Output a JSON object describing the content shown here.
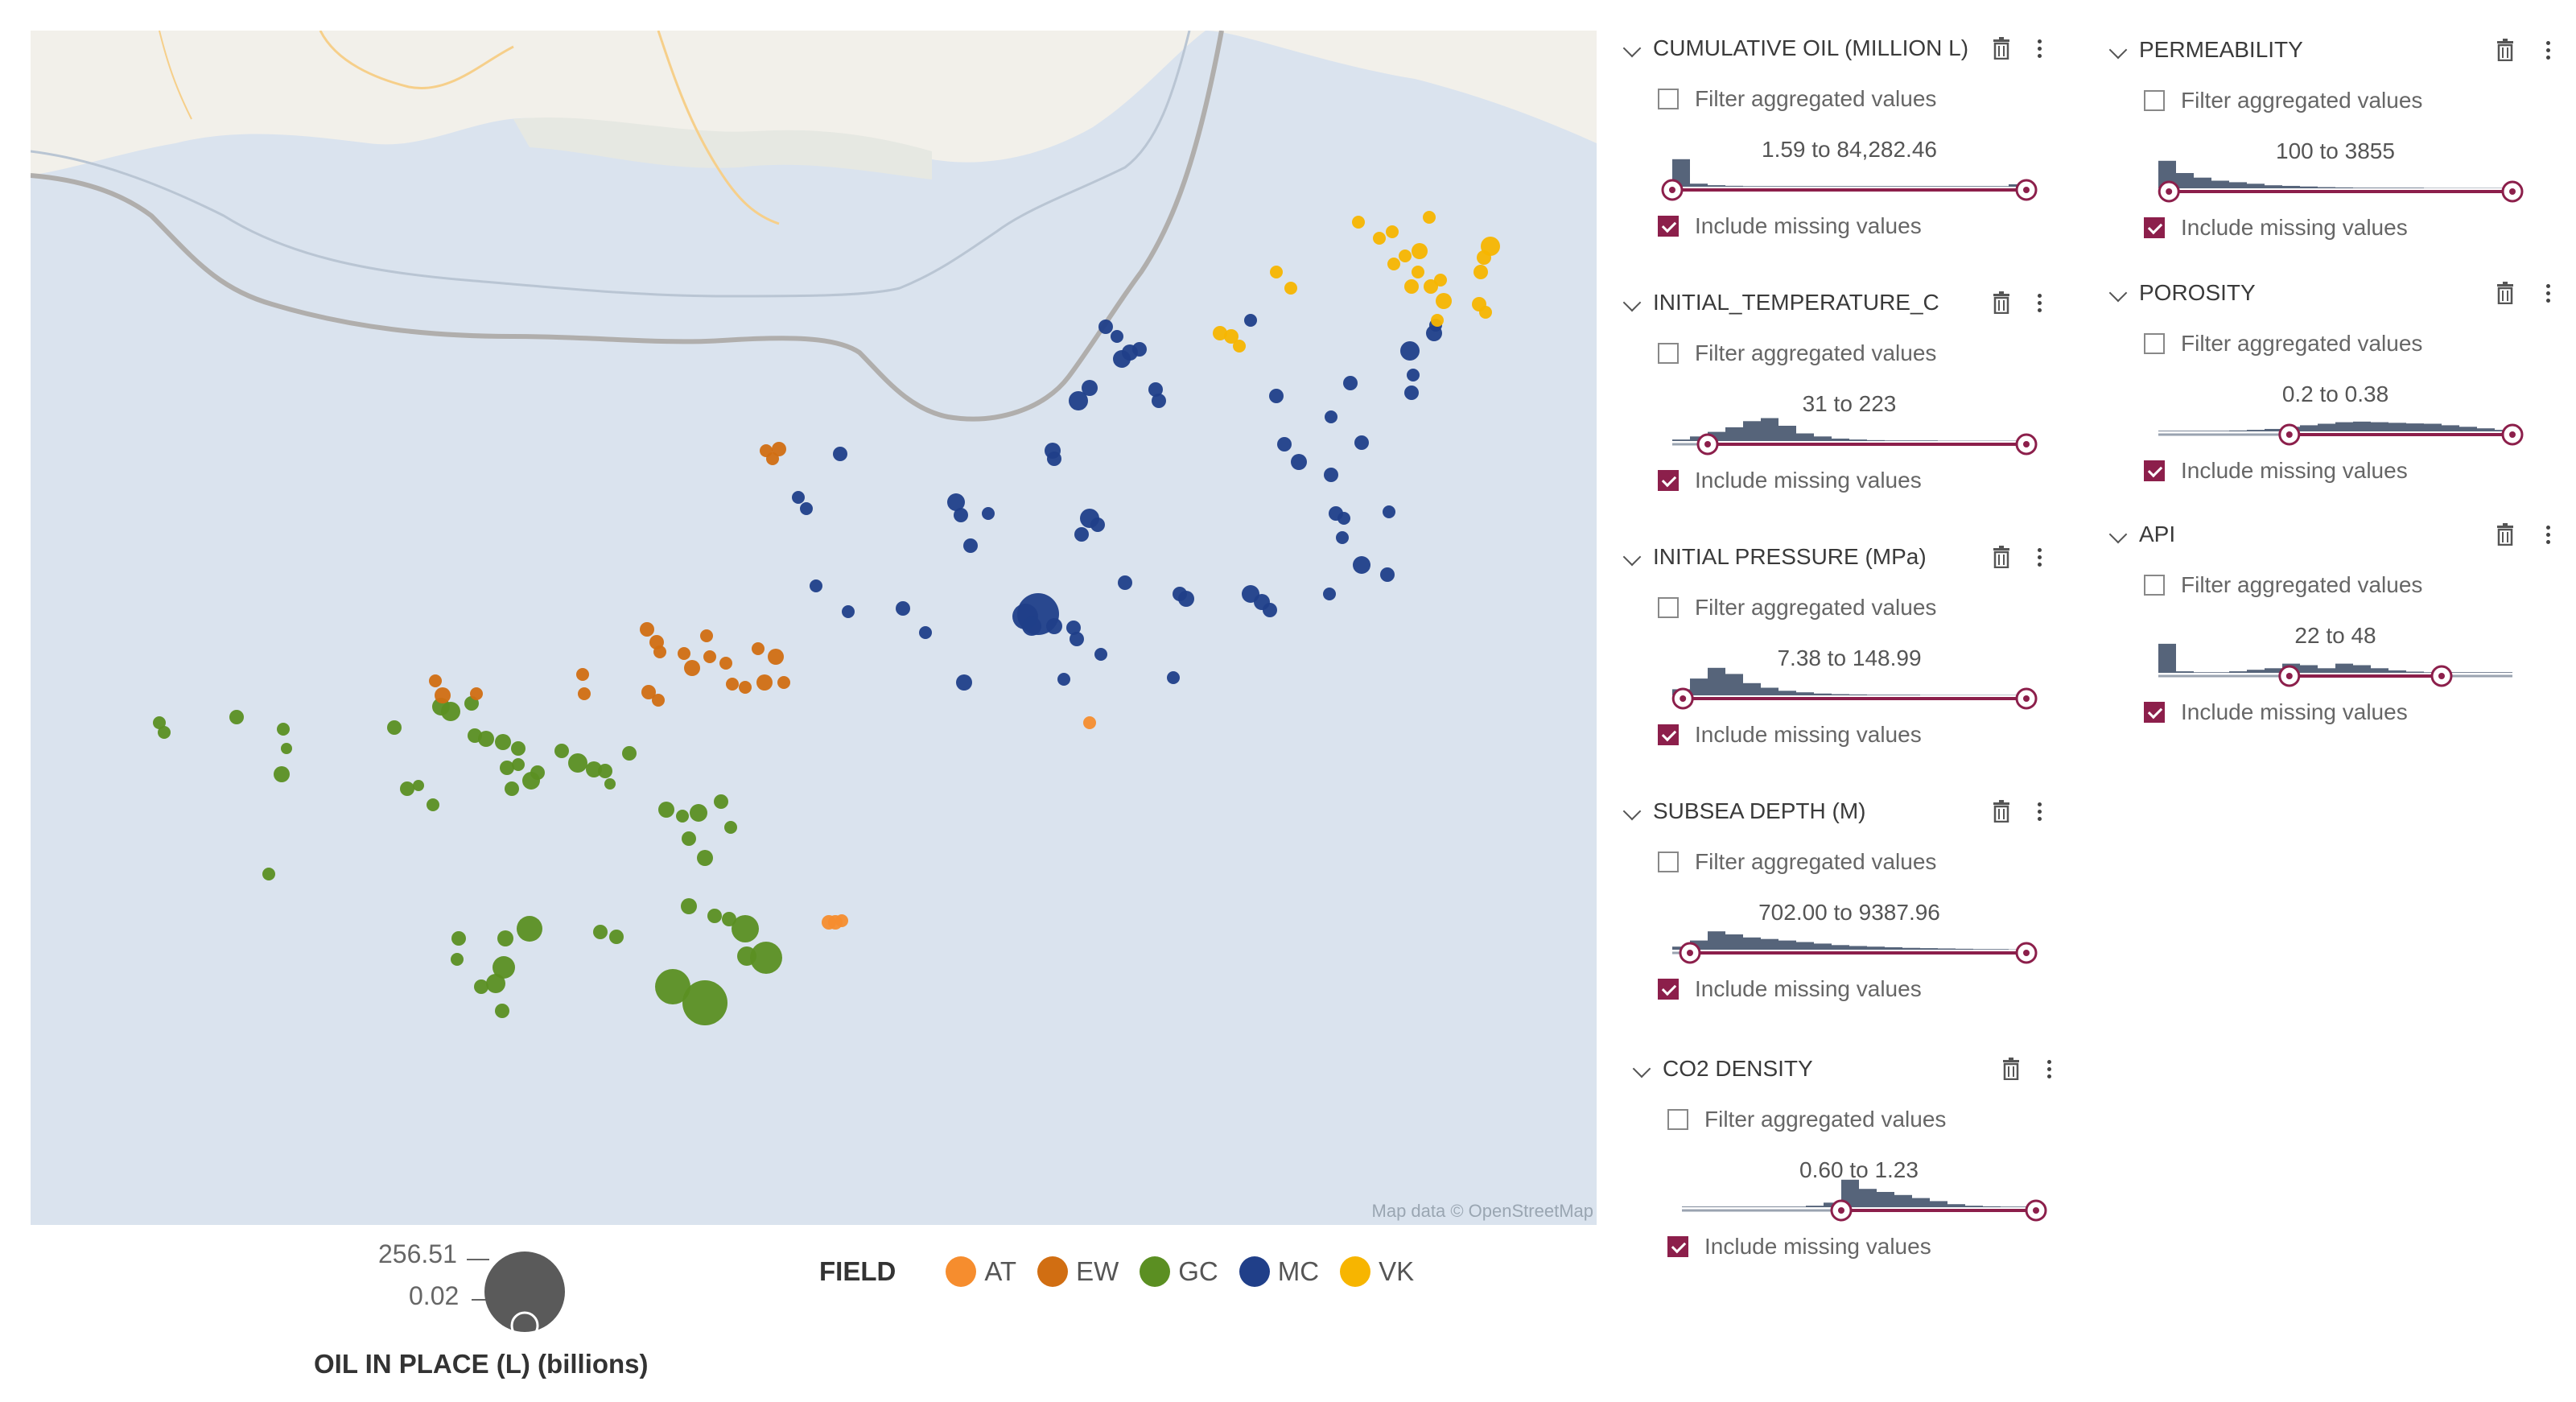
{
  "map": {
    "attribution": "Map data © OpenStreetMap",
    "colors": {
      "water": "#dae3ee",
      "land": "#f2f0ea",
      "shelf_line": "#b3b0ae",
      "AT": "#f68d2e",
      "EW": "#d16e12",
      "GC": "#5b8f22",
      "MC": "#203f89",
      "VK": "#f7b500"
    },
    "note_icons": []
  },
  "size_legend": {
    "max_value": "256.51",
    "min_value": "0.02",
    "title": "OIL IN PLACE (L) (billions)"
  },
  "field_legend": {
    "title": "FIELD",
    "items": [
      {
        "label": "AT",
        "color": "#f68d2e"
      },
      {
        "label": "EW",
        "color": "#d16e12"
      },
      {
        "label": "GC",
        "color": "#5b8f22"
      },
      {
        "label": "MC",
        "color": "#203f89"
      },
      {
        "label": "VK",
        "color": "#f7b500"
      }
    ]
  },
  "filters": [
    {
      "title": "CUMULATIVE OIL (MILLION L)",
      "filter_label": "Filter aggregated values",
      "filter_checked": false,
      "range": "1.59 to 84,282.46",
      "missing_label": "Include missing values",
      "missing_checked": true,
      "low": 0.0,
      "high": 1.0
    },
    {
      "title": "INITIAL_TEMPERATURE_C",
      "filter_label": "Filter aggregated values",
      "filter_checked": false,
      "range": "31 to 223",
      "missing_label": "Include missing values",
      "missing_checked": true,
      "low": 0.1,
      "high": 1.0
    },
    {
      "title": "INITIAL PRESSURE (MPa)",
      "filter_label": "Filter aggregated values",
      "filter_checked": false,
      "range": "7.38 to 148.99",
      "missing_label": "Include missing values",
      "missing_checked": true,
      "low": 0.03,
      "high": 1.0
    },
    {
      "title": "SUBSEA DEPTH (M)",
      "filter_label": "Filter aggregated values",
      "filter_checked": false,
      "range": "702.00 to 9387.96",
      "missing_label": "Include missing values",
      "missing_checked": true,
      "low": 0.05,
      "high": 1.0
    },
    {
      "title": "CO2 DENSITY",
      "filter_label": "Filter aggregated values",
      "filter_checked": false,
      "range": "0.60 to 1.23",
      "missing_label": "Include missing values",
      "missing_checked": true,
      "low": 0.45,
      "high": 1.0
    },
    {
      "title": "PERMEABILITY",
      "filter_label": "Filter aggregated values",
      "filter_checked": false,
      "range": "100 to 3855",
      "missing_label": "Include missing values",
      "missing_checked": true,
      "low": 0.03,
      "high": 1.0
    },
    {
      "title": "POROSITY",
      "filter_label": "Filter aggregated values",
      "filter_checked": false,
      "range": "0.2 to 0.38",
      "missing_label": "Include missing values",
      "missing_checked": true,
      "low": 0.37,
      "high": 1.0
    },
    {
      "title": "API",
      "filter_label": "Filter aggregated values",
      "filter_checked": false,
      "range": "22 to 48",
      "missing_label": "Include missing values",
      "missing_checked": true,
      "low": 0.37,
      "high": 0.8
    }
  ]
}
